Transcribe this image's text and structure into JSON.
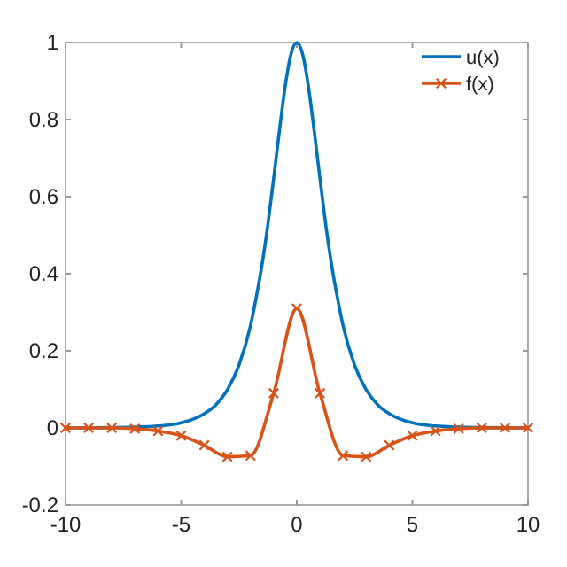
{
  "chart_data": {
    "type": "line",
    "xlim": [
      -10,
      10
    ],
    "xticks": [
      -10,
      -5,
      0,
      5,
      10
    ],
    "ylim": [
      -0.2,
      1
    ],
    "yticks": [
      -0.2,
      0,
      0.2,
      0.4,
      0.6,
      0.8,
      1
    ],
    "grid": false,
    "legend": "top right",
    "series": [
      {
        "name": "u(x)",
        "color": "#0072bd",
        "marker": "none",
        "x": [
          -10,
          -7,
          -6,
          -5,
          -4,
          -3.5,
          -3,
          -2.5,
          -2,
          -1.75,
          -1.5,
          -1.25,
          -1,
          -0.75,
          -0.5,
          -0.25,
          0,
          0.25,
          0.5,
          0.75,
          1,
          1.25,
          1.5,
          1.75,
          2,
          2.5,
          3,
          3.5,
          4,
          5,
          6,
          7,
          10
        ],
        "values": [
          0,
          0.002,
          0.005,
          0.013,
          0.037,
          0.06,
          0.099,
          0.163,
          0.266,
          0.34,
          0.425,
          0.528,
          0.648,
          0.772,
          0.887,
          0.97,
          1,
          0.97,
          0.887,
          0.772,
          0.648,
          0.528,
          0.425,
          0.34,
          0.266,
          0.163,
          0.099,
          0.06,
          0.037,
          0.013,
          0.005,
          0.002,
          0
        ]
      },
      {
        "name": "f(x)",
        "color": "#d95319",
        "marker": "cross",
        "x": [
          -10,
          -9,
          -8,
          -7,
          -6,
          -5,
          -4,
          -3,
          -2,
          -1,
          0,
          1,
          2,
          3,
          4,
          5,
          6,
          7,
          8,
          9,
          10
        ],
        "values": [
          0,
          0,
          0,
          -0.002,
          -0.008,
          -0.02,
          -0.045,
          -0.075,
          -0.072,
          0.09,
          0.31,
          0.09,
          -0.072,
          -0.075,
          -0.045,
          -0.02,
          -0.008,
          -0.002,
          0,
          0,
          0
        ]
      }
    ]
  }
}
